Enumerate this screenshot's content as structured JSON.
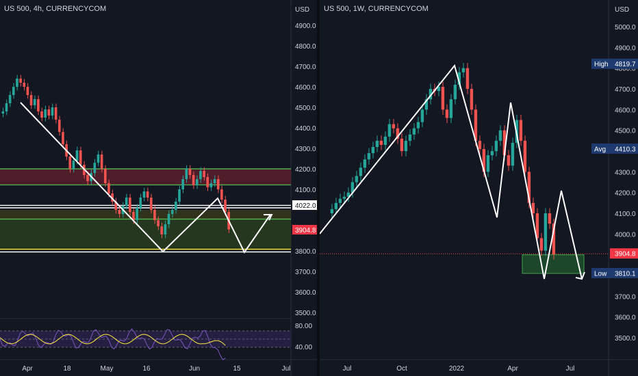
{
  "colors": {
    "background": "#131722",
    "axis_text": "#d1d4dc",
    "grid": "#1e222d",
    "up": "#26a69a",
    "down": "#ef5350",
    "price_tag": "#f23645",
    "tag_blue": "#1e3a6e",
    "green_line": "#4caf50",
    "yellow_line": "#ffeb3b",
    "white_line": "#ffffff"
  },
  "left": {
    "title": "US 500, 4h, CURRENCYCOM",
    "currency": "USD",
    "y_ticks": [
      "4900.0",
      "4800.0",
      "4700.0",
      "4600.0",
      "4500.0",
      "4400.0",
      "4300.0",
      "4200.0",
      "4100.0",
      "3800.0",
      "3700.0",
      "3600.0",
      "3500.0"
    ],
    "x_ticks": [
      "Apr",
      "18",
      "May",
      "16",
      "Jun",
      "15",
      "Jul"
    ],
    "price_tag": "3904.8",
    "level_tag": "4022.0",
    "rsi_ticks": [
      "80.00",
      "40.00"
    ]
  },
  "right": {
    "title": "US 500, 1W, CURRENCYCOM",
    "currency": "USD",
    "y_ticks": [
      "5000.0",
      "4900.0",
      "4800.0",
      "4700.0",
      "4600.0",
      "4500.0",
      "4300.0",
      "4200.0",
      "4100.0",
      "4000.0",
      "3700.0",
      "3600.0",
      "3500.0"
    ],
    "x_ticks": [
      "Jul",
      "Oct",
      "2022",
      "Apr",
      "Jul"
    ],
    "high_label": "High",
    "high_value": "4819.7",
    "avg_label": "Avg",
    "avg_value": "4410.3",
    "low_label": "Low",
    "low_value": "3810.1",
    "price_tag": "3904.8"
  },
  "chart_data": [
    {
      "type": "candlestick",
      "title": "US 500, 4h, CURRENCYCOM",
      "ylabel": "USD",
      "ylim": [
        3480,
        4960
      ],
      "x_ticks": [
        "Apr",
        "18",
        "May",
        "16",
        "Jun",
        "15",
        "Jul"
      ],
      "closes": [
        4480,
        4520,
        4560,
        4600,
        4640,
        4620,
        4600,
        4560,
        4510,
        4540,
        4480,
        4450,
        4490,
        4460,
        4500,
        4440,
        4380,
        4320,
        4260,
        4200,
        4240,
        4290,
        4220,
        4170,
        4140,
        4180,
        4230,
        4270,
        4200,
        4130,
        4080,
        4040,
        4000,
        3980,
        4020,
        4060,
        3990,
        3950,
        4010,
        4060,
        4090,
        4060,
        4000,
        3950,
        3920,
        3880,
        3930,
        3980,
        4000,
        4040,
        4100,
        4150,
        4200,
        4170,
        4120,
        4150,
        4190,
        4160,
        4110,
        4130,
        4150,
        4100,
        4050,
        3990,
        3905
      ],
      "horizontal_levels": [
        4200,
        4122,
        4022,
        4010,
        3955,
        3808,
        3795
      ],
      "pattern_path": [
        [
          "Apr",
          4520
        ],
        [
          "May",
          3800
        ],
        [
          "Jun",
          4120
        ],
        [
          "Jun",
          3790
        ],
        [
          "15",
          3990
        ]
      ],
      "rsi_levels": [
        70,
        50,
        30
      ]
    },
    {
      "type": "candlestick",
      "title": "US 500, 1W, CURRENCYCOM",
      "ylabel": "USD",
      "ylim": [
        3440,
        5060
      ],
      "x_ticks": [
        "Jul",
        "Oct",
        "2022",
        "Apr",
        "Jul"
      ],
      "closes": [
        4120,
        4150,
        4170,
        4180,
        4200,
        4250,
        4280,
        4320,
        4360,
        4390,
        4420,
        4450,
        4430,
        4470,
        4530,
        4510,
        4460,
        4400,
        4450,
        4480,
        4510,
        4540,
        4600,
        4650,
        4700,
        4690,
        4710,
        4600,
        4560,
        4650,
        4720,
        4780,
        4800,
        4700,
        4600,
        4450,
        4410,
        4300,
        4380,
        4400,
        4450,
        4500,
        4380,
        4330,
        4440,
        4550,
        4450,
        4300,
        4150,
        4100,
        3980,
        3920,
        4100,
        4050,
        3902
      ],
      "high": 4819.7,
      "average": 4410.3,
      "low": 3810.1,
      "last": 3904.8,
      "highlight_zone": [
        3810,
        3900
      ],
      "pattern_path": [
        [
          3990,
          3990
        ],
        [
          4810,
          4810
        ],
        [
          4080,
          4080
        ],
        [
          4630,
          4630
        ],
        [
          3770,
          3770
        ],
        [
          4210,
          4210
        ],
        [
          3770,
          3770
        ]
      ]
    }
  ]
}
